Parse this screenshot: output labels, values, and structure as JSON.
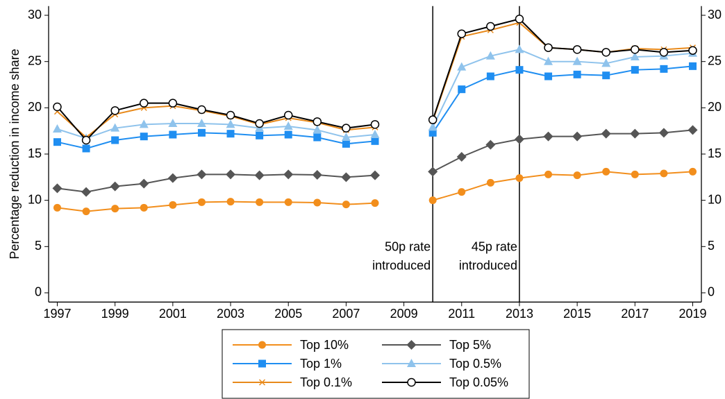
{
  "chart_data": {
    "type": "line",
    "y_label": "Percentage reduction in income share",
    "x": [
      1997,
      1998,
      1999,
      2000,
      2001,
      2002,
      2003,
      2004,
      2005,
      2006,
      2007,
      2008,
      2009,
      2010,
      2011,
      2012,
      2013,
      2014,
      2015,
      2016,
      2017,
      2018,
      2019
    ],
    "xlim": [
      1996.7,
      2019.3
    ],
    "xticks": [
      1997,
      1999,
      2001,
      2003,
      2005,
      2007,
      2009,
      2011,
      2013,
      2015,
      2017,
      2019
    ],
    "ylim": [
      -1,
      31
    ],
    "yticks": [
      0,
      5,
      10,
      15,
      20,
      25,
      30
    ],
    "y2lim": [
      -1,
      31
    ],
    "y2ticks": [
      0,
      5,
      10,
      15,
      20,
      25,
      30
    ],
    "annotations": [
      {
        "x": 2010,
        "lines": [
          "50p rate",
          "introduced"
        ],
        "side": "left"
      },
      {
        "x": 2013,
        "lines": [
          "45p rate",
          "introduced"
        ],
        "side": "left"
      }
    ],
    "series": [
      {
        "name": "Top 10%",
        "color": "#f28e1c",
        "marker": "circle",
        "values": [
          9.2,
          8.8,
          9.1,
          9.2,
          9.5,
          9.8,
          9.85,
          9.8,
          9.8,
          9.75,
          9.55,
          9.7,
          null,
          10.0,
          10.9,
          11.9,
          12.4,
          12.8,
          12.7,
          13.1,
          12.8,
          12.9,
          13.1
        ]
      },
      {
        "name": "Top 5%",
        "color": "#555555",
        "marker": "diamond",
        "values": [
          11.3,
          10.9,
          11.5,
          11.8,
          12.4,
          12.8,
          12.8,
          12.7,
          12.8,
          12.75,
          12.5,
          12.7,
          null,
          13.1,
          14.7,
          16.0,
          16.6,
          16.9,
          16.9,
          17.2,
          17.2,
          17.3,
          17.6
        ]
      },
      {
        "name": "Top 1%",
        "color": "#1f8ef1",
        "marker": "square",
        "values": [
          16.3,
          15.6,
          16.5,
          16.9,
          17.1,
          17.3,
          17.2,
          17.0,
          17.1,
          16.8,
          16.1,
          16.4,
          null,
          17.3,
          22.0,
          23.4,
          24.1,
          23.4,
          23.6,
          23.5,
          24.1,
          24.2,
          24.5
        ]
      },
      {
        "name": "Top 0.5%",
        "color": "#8fc3ec",
        "marker": "triangle",
        "values": [
          17.7,
          16.7,
          17.8,
          18.2,
          18.3,
          18.3,
          18.2,
          17.8,
          18.0,
          17.6,
          16.8,
          17.1,
          null,
          17.9,
          24.4,
          25.6,
          26.3,
          25.0,
          25.0,
          24.8,
          25.5,
          25.6,
          25.9
        ]
      },
      {
        "name": "Top 0.1%",
        "color": "#e8891a",
        "marker": "x",
        "values": [
          19.6,
          16.8,
          19.3,
          20.0,
          20.2,
          19.7,
          19.1,
          18.2,
          18.9,
          18.4,
          17.6,
          17.9,
          null,
          18.6,
          27.7,
          28.4,
          29.2,
          26.5,
          26.3,
          26.0,
          26.4,
          26.3,
          26.5
        ]
      },
      {
        "name": "Top 0.05%",
        "color": "#000000",
        "marker": "open-circle",
        "values": [
          20.1,
          16.5,
          19.7,
          20.5,
          20.5,
          19.8,
          19.2,
          18.3,
          19.2,
          18.5,
          17.8,
          18.2,
          null,
          18.7,
          28.0,
          28.8,
          29.6,
          26.5,
          26.3,
          26.0,
          26.3,
          26.0,
          26.2
        ]
      }
    ]
  }
}
